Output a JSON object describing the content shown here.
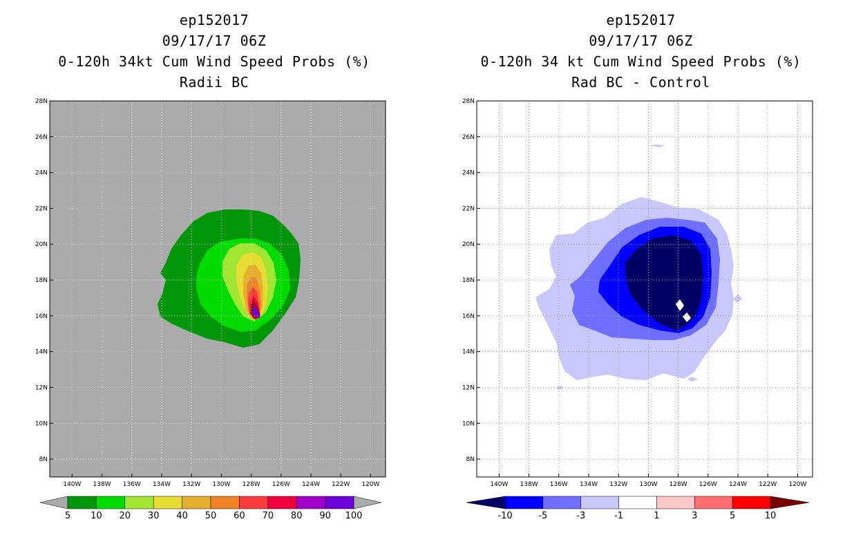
{
  "chart_data": [
    {
      "type": "heatmap",
      "title_lines": [
        "ep152017",
        "09/17/17 06Z",
        "0-120h 34kt Cum Wind Speed Probs (%)",
        "Radii BC"
      ],
      "x_ticks": [
        "140W",
        "138W",
        "136W",
        "134W",
        "132W",
        "130W",
        "128W",
        "126W",
        "124W",
        "122W",
        "120W"
      ],
      "y_ticks": [
        "28N",
        "26N",
        "24N",
        "22N",
        "20N",
        "18N",
        "16N",
        "14N",
        "12N",
        "10N",
        "8N"
      ],
      "xlim": [
        -141.5,
        -119
      ],
      "ylim": [
        7,
        28
      ],
      "grid": true,
      "background_color": "#aaaaaa",
      "colorbar": {
        "labels": [
          "5",
          "10",
          "20",
          "30",
          "40",
          "50",
          "60",
          "70",
          "80",
          "90",
          "100"
        ],
        "colors": [
          "#00960a",
          "#00dc00",
          "#a0e632",
          "#e6dc32",
          "#e6af2d",
          "#f08228",
          "#fa3c3c",
          "#f0003c",
          "#960000",
          "#a000c8",
          "#6e00dc"
        ],
        "end_arrow_color": "#aaaaaa"
      }
    },
    {
      "type": "heatmap",
      "title_lines": [
        "ep152017",
        "09/17/17 06Z",
        "0-120h 34 kt Cum Wind Speed Probs (%)",
        "Rad BC - Control"
      ],
      "x_ticks": [
        "140W",
        "138W",
        "136W",
        "134W",
        "132W",
        "130W",
        "128W",
        "126W",
        "124W",
        "122W",
        "120W"
      ],
      "y_ticks": [
        "28N",
        "26N",
        "24N",
        "22N",
        "20N",
        "18N",
        "16N",
        "14N",
        "12N",
        "10N",
        "8N"
      ],
      "xlim": [
        -141.5,
        -119
      ],
      "ylim": [
        7,
        28
      ],
      "grid": true,
      "background_color": "#ffffff",
      "colorbar": {
        "labels": [
          "-10",
          "-5",
          "-3",
          "-1",
          "1",
          "3",
          "5",
          "10"
        ],
        "colors": [
          "#000064",
          "#0000ff",
          "#6e6eff",
          "#c8c8ff",
          "#ffffff",
          "#ffc8c8",
          "#ff6e6e",
          "#ff0000",
          "#780000"
        ]
      }
    }
  ]
}
